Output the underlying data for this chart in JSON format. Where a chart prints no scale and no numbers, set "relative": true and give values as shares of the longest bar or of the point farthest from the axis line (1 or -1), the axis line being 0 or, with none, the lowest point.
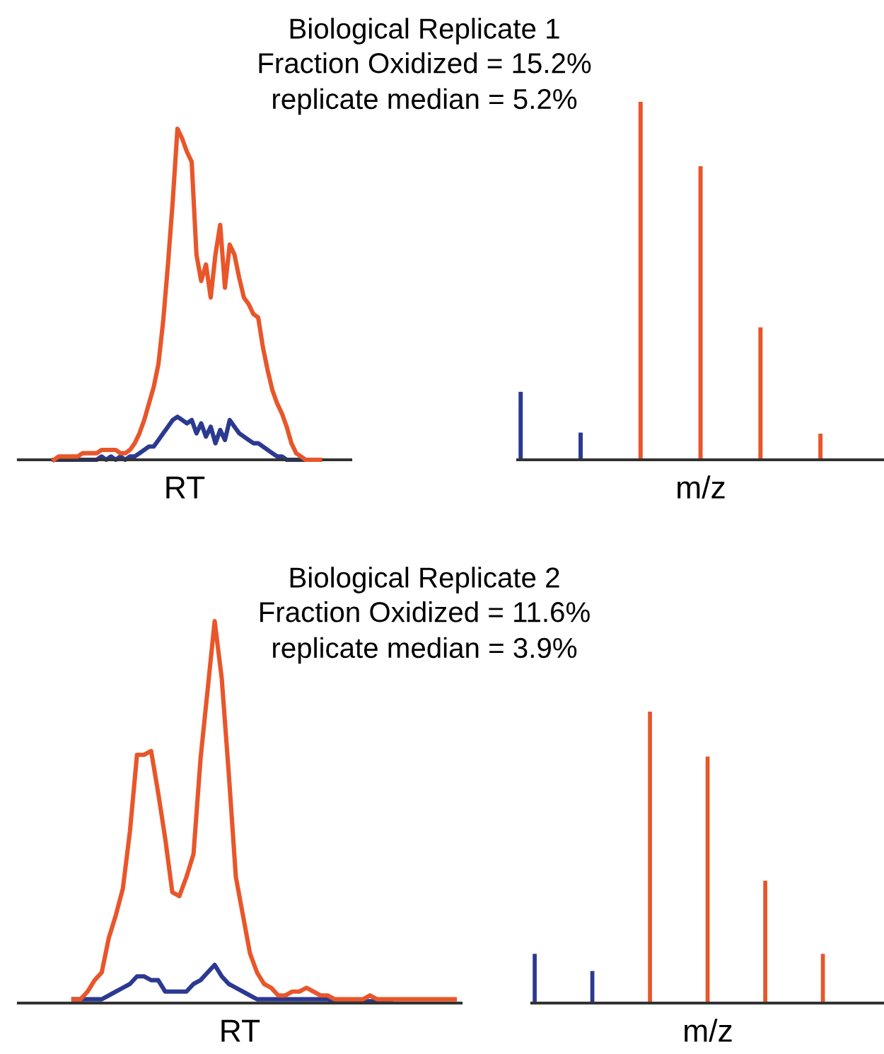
{
  "chart_data": [
    {
      "type": "line",
      "title": "Biological Replicate 1",
      "subtitle": "Fraction Oxidized = 15.2%\nreplicate median = 5.2%",
      "xlabel": "RT",
      "relative": true,
      "tick_labels": false,
      "categories": [
        null,
        null,
        null,
        null,
        null,
        null,
        null,
        null,
        null,
        null,
        null,
        null,
        null,
        null,
        null,
        null,
        null,
        null,
        null,
        null,
        null,
        null,
        null,
        null,
        null,
        null,
        null,
        null,
        null,
        null,
        null,
        null,
        null,
        null,
        null,
        null,
        null,
        null,
        null,
        null,
        null,
        null,
        null,
        null,
        null,
        null,
        null,
        null,
        null,
        null,
        null,
        null,
        null,
        null,
        null,
        null,
        null
      ],
      "series": [
        {
          "color": "#e8562a",
          "values": [
            0.0,
            0.01,
            0.01,
            0.01,
            0.01,
            0.01,
            0.02,
            0.02,
            0.02,
            0.02,
            0.03,
            0.03,
            0.03,
            0.03,
            0.02,
            0.02,
            0.03,
            0.05,
            0.08,
            0.12,
            0.17,
            0.22,
            0.29,
            0.42,
            0.59,
            0.78,
            1.0,
            0.97,
            0.93,
            0.9,
            0.62,
            0.54,
            0.59,
            0.49,
            0.62,
            0.71,
            0.52,
            0.65,
            0.62,
            0.55,
            0.49,
            0.47,
            0.44,
            0.43,
            0.34,
            0.27,
            0.21,
            0.17,
            0.14,
            0.1,
            0.05,
            0.02,
            0.01,
            0.0,
            0.0,
            0.0,
            0.0
          ]
        },
        {
          "color": "#2b3990",
          "values": [
            0,
            0,
            0,
            0,
            0,
            0,
            0,
            0,
            0,
            0,
            0.01,
            0,
            0.01,
            0,
            0.01,
            0,
            0.01,
            0.01,
            0.02,
            0.03,
            0.04,
            0.04,
            0.06,
            0.08,
            0.1,
            0.12,
            0.13,
            0.12,
            0.11,
            0.12,
            0.08,
            0.11,
            0.07,
            0.1,
            0.05,
            0.09,
            0.06,
            0.12,
            0.1,
            0.08,
            0.07,
            0.06,
            0.05,
            0.05,
            0.04,
            0.03,
            0.02,
            0.01,
            0.01,
            0,
            0,
            0,
            0,
            0,
            0,
            0,
            0
          ]
        }
      ]
    },
    {
      "type": "bar",
      "xlabel": "m/z",
      "relative": true,
      "tick_labels": false,
      "categories": [
        null,
        null,
        null,
        null,
        null,
        null
      ],
      "values": [
        0.19,
        0.076,
        1.0,
        0.82,
        0.37,
        0.073
      ],
      "colors": [
        "#2b3990",
        "#2b3990",
        "#e8562a",
        "#e8562a",
        "#e8562a",
        "#e8562a"
      ]
    },
    {
      "type": "line",
      "title": "Biological Replicate 2",
      "subtitle": "Fraction Oxidized = 11.6%\nreplicate median = 3.9%",
      "xlabel": "RT",
      "relative": true,
      "tick_labels": false,
      "categories": [
        null,
        null,
        null,
        null,
        null,
        null,
        null,
        null,
        null,
        null,
        null,
        null,
        null,
        null,
        null,
        null,
        null,
        null,
        null,
        null,
        null,
        null,
        null,
        null,
        null,
        null,
        null,
        null,
        null,
        null,
        null,
        null,
        null,
        null,
        null,
        null,
        null,
        null,
        null,
        null,
        null,
        null,
        null,
        null,
        null,
        null,
        null,
        null,
        null,
        null,
        null,
        null,
        null,
        null,
        null
      ],
      "series": [
        {
          "color": "#e8562a",
          "values": [
            0.01,
            0.01,
            0.03,
            0.06,
            0.08,
            0.17,
            0.23,
            0.3,
            0.45,
            0.65,
            0.65,
            0.66,
            0.55,
            0.43,
            0.29,
            0.28,
            0.33,
            0.39,
            0.64,
            0.82,
            1.0,
            0.85,
            0.6,
            0.33,
            0.23,
            0.13,
            0.08,
            0.05,
            0.04,
            0.02,
            0.02,
            0.03,
            0.03,
            0.04,
            0.03,
            0.02,
            0.02,
            0.01,
            0.01,
            0.01,
            0.01,
            0.01,
            0.02,
            0.01,
            0.01,
            0.01,
            0.01,
            0.01,
            0.01,
            0.01,
            0.01,
            0.01,
            0.01,
            0.01,
            0.01
          ]
        },
        {
          "color": "#2b3990",
          "values": [
            0.01,
            0.01,
            0.01,
            0.01,
            0.01,
            0.02,
            0.03,
            0.04,
            0.05,
            0.07,
            0.07,
            0.06,
            0.06,
            0.03,
            0.03,
            0.03,
            0.03,
            0.05,
            0.06,
            0.08,
            0.1,
            0.07,
            0.05,
            0.04,
            0.03,
            0.02,
            0.01,
            0.01,
            0.01,
            0.01,
            0.01,
            0.01,
            0.01,
            0.01,
            0.01,
            0.01,
            0.01,
            0.005,
            0.005,
            0.005,
            0.005,
            0.005,
            0.005,
            0.005,
            0.005,
            0.005,
            null,
            null,
            null,
            null,
            null,
            null,
            null,
            null,
            null
          ]
        }
      ]
    },
    {
      "type": "bar",
      "xlabel": "m/z",
      "relative": true,
      "tick_labels": false,
      "categories": [
        null,
        null,
        null,
        null,
        null,
        null
      ],
      "values": [
        0.169,
        0.11,
        1.0,
        0.846,
        0.42,
        0.169
      ],
      "colors": [
        "#2b3990",
        "#2b3990",
        "#e8562a",
        "#e8562a",
        "#e8562a",
        "#e8562a"
      ]
    }
  ]
}
